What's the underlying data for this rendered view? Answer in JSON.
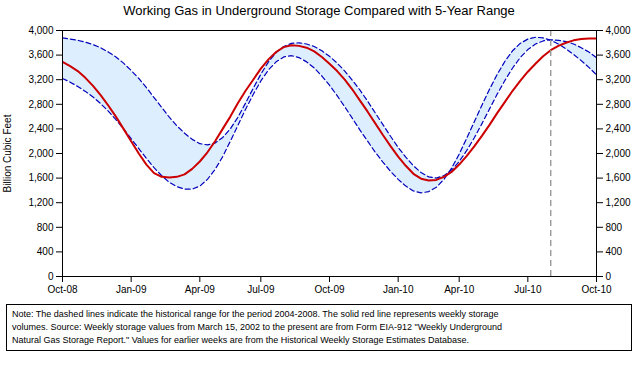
{
  "chart_data": {
    "type": "line",
    "title": "Working Gas in Underground Storage Compared with 5-Year Range",
    "ylabel": "Billion Cubic Feet",
    "caption": [
      "Note:   The dashed lines indicate the historical range for the period 2004-2008.  The solid red line represents weekly storage",
      "volumes.  Source:  Weekly storage values from March 15, 2002 to the present are from Form EIA-912 \"Weekly Underground",
      "Natural Gas Storage Report.\"  Values for earlier weeks are from the Historical Weekly Storage Estimates Database."
    ],
    "categories": [
      "Oct-08",
      null,
      null,
      null,
      null,
      null,
      null,
      null,
      null,
      "Jan-09",
      null,
      null,
      null,
      null,
      null,
      null,
      null,
      null,
      "Apr-09",
      null,
      null,
      null,
      null,
      null,
      null,
      null,
      "Jul-09",
      null,
      null,
      null,
      null,
      null,
      null,
      null,
      null,
      "Oct-09",
      null,
      null,
      null,
      null,
      null,
      null,
      null,
      null,
      "Jan-10",
      null,
      null,
      null,
      null,
      null,
      null,
      null,
      "Apr-10",
      null,
      null,
      null,
      null,
      null,
      null,
      null,
      null,
      "Jul-10",
      null,
      null,
      null,
      null,
      null,
      null,
      null,
      null,
      "Oct-10"
    ],
    "ylim": [
      0,
      4000
    ],
    "yticks": [
      0,
      400,
      800,
      {
        "value": 1200,
        "label": "1,200"
      },
      {
        "value": 1600,
        "label": "1,600"
      },
      {
        "value": 2000,
        "label": "2,000"
      },
      {
        "value": 2400,
        "label": "2,400"
      },
      {
        "value": 2800,
        "label": "2,800"
      },
      {
        "value": 3200,
        "label": "3,200"
      },
      {
        "value": 3600,
        "label": "3,600"
      },
      {
        "value": 4000,
        "label": "4,000"
      }
    ],
    "grid": false,
    "series": [
      {
        "type": "band",
        "color": "#ddeeff",
        "edge_color": "#0000bb",
        "line_style": "dashed",
        "upper": [
          3880,
          3860,
          3840,
          3810,
          3770,
          3720,
          3650,
          3570,
          3470,
          3350,
          3220,
          3070,
          2910,
          2750,
          2590,
          2450,
          2330,
          2230,
          2160,
          2140,
          2170,
          2260,
          2400,
          2590,
          2820,
          3060,
          3290,
          3490,
          3640,
          3740,
          3790,
          3800,
          3780,
          3740,
          3670,
          3580,
          3470,
          3340,
          3190,
          3030,
          2850,
          2660,
          2470,
          2280,
          2100,
          1940,
          1800,
          1690,
          1620,
          1600,
          1640,
          1730,
          1870,
          2050,
          2260,
          2490,
          2730,
          2970,
          3190,
          3390,
          3560,
          3690,
          3780,
          3830,
          3850,
          3840,
          3820,
          3780,
          3720,
          3650,
          3560
        ],
        "lower": [
          3220,
          3160,
          3090,
          3010,
          2920,
          2810,
          2690,
          2550,
          2400,
          2240,
          2080,
          1920,
          1770,
          1640,
          1530,
          1460,
          1420,
          1420,
          1470,
          1580,
          1740,
          1950,
          2200,
          2460,
          2720,
          2960,
          3180,
          3360,
          3490,
          3570,
          3590,
          3560,
          3490,
          3390,
          3260,
          3110,
          2940,
          2760,
          2570,
          2380,
          2200,
          2020,
          1860,
          1710,
          1580,
          1470,
          1390,
          1360,
          1380,
          1450,
          1580,
          1760,
          1990,
          2250,
          2520,
          2790,
          3050,
          3290,
          3500,
          3670,
          3790,
          3860,
          3890,
          3880,
          3840,
          3780,
          3700,
          3610,
          3510,
          3400,
          3280
        ]
      },
      {
        "type": "line",
        "color": "#cc0000",
        "line_style": "solid",
        "values": [
          3490,
          3420,
          3340,
          3230,
          3100,
          2950,
          2780,
          2600,
          2400,
          2200,
          2000,
          1820,
          1680,
          1620,
          1610,
          1620,
          1660,
          1750,
          1870,
          2020,
          2200,
          2400,
          2600,
          2820,
          3020,
          3200,
          3380,
          3530,
          3650,
          3730,
          3760,
          3750,
          3720,
          3660,
          3570,
          3460,
          3340,
          3200,
          3040,
          2860,
          2680,
          2490,
          2300,
          2120,
          1950,
          1800,
          1670,
          1590,
          1560,
          1570,
          1620,
          1700,
          1820,
          1960,
          2120,
          2290,
          2470,
          2660,
          2840,
          3020,
          3180,
          3330,
          3460,
          3580,
          3680,
          3750,
          3800,
          3840,
          3860,
          3870,
          3870
        ]
      }
    ],
    "annotations": [
      {
        "type": "vline",
        "x": 64,
        "color": "#999999",
        "line_style": "dashed"
      }
    ]
  }
}
